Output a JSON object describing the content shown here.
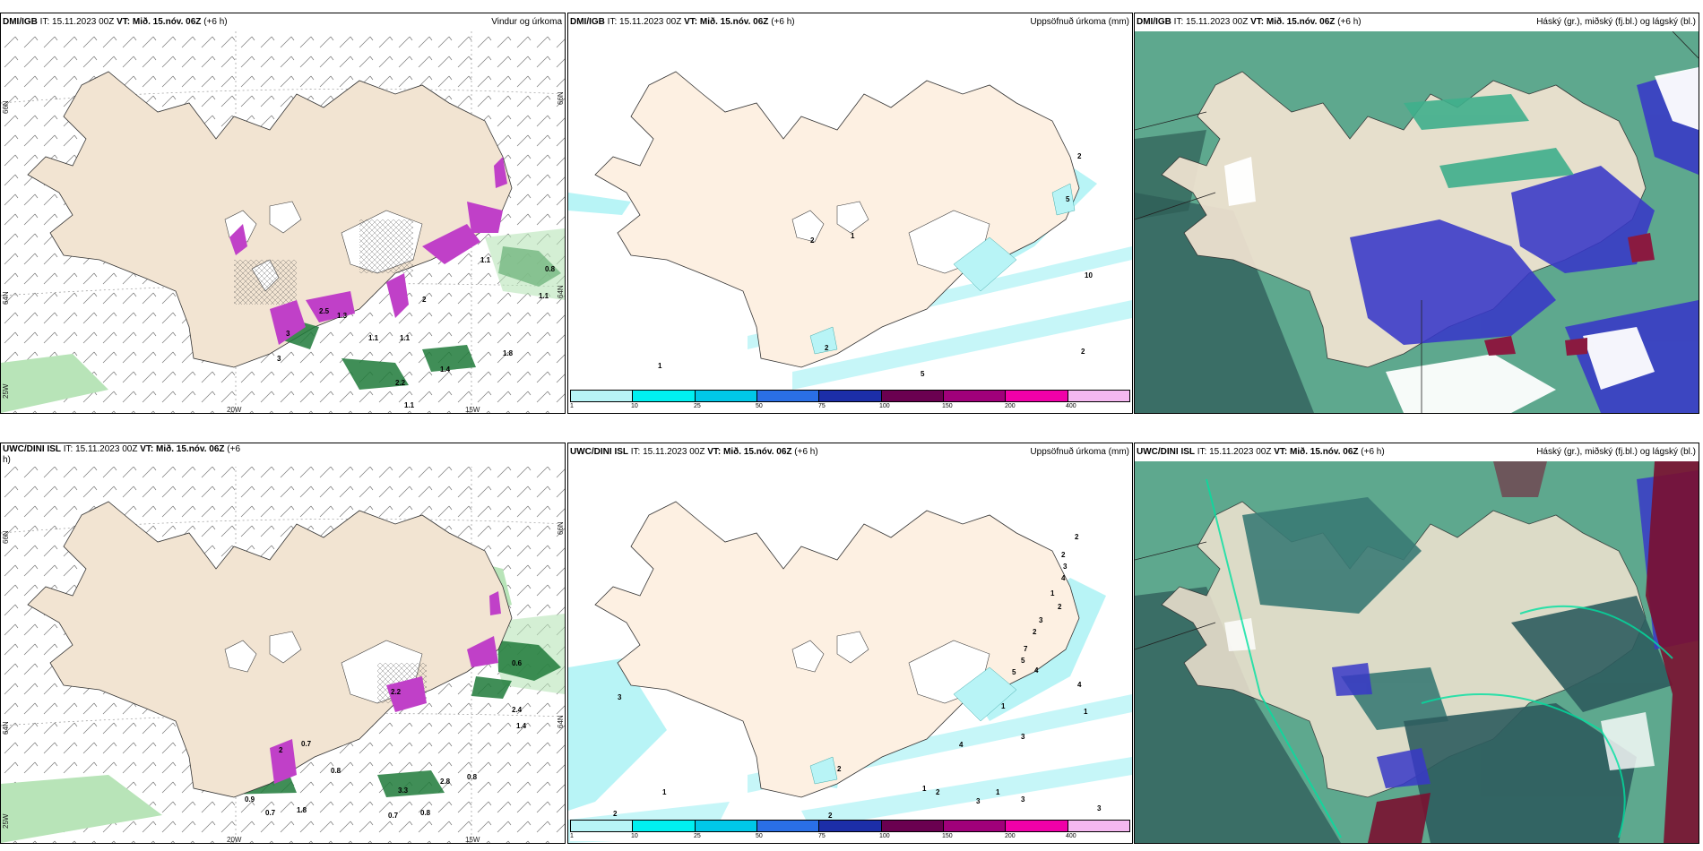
{
  "panels": [
    {
      "id": "dmi-wind",
      "model": "DMI/IGB",
      "it_label": "IT:",
      "it_value": "15.11.2023 00Z",
      "vt_label": "VT:",
      "vt_value": "Mið. 15.nóv. 06Z",
      "lead": "(+6 h)",
      "title": "Vindur og úrkoma",
      "lat_labels": [
        "66N",
        "64N",
        "66N",
        "64N",
        "25W"
      ],
      "lon_labels": [
        "20W",
        "15W"
      ],
      "values": [
        "0.8",
        "1.1",
        "1.3",
        "2.5",
        "1.1",
        "3",
        "3",
        "1.1",
        "2.2",
        "1.4",
        "1.8",
        "2",
        "1.1",
        "1.1"
      ]
    },
    {
      "id": "dmi-precip",
      "model": "DMI/IGB",
      "it_label": "IT:",
      "it_value": "15.11.2023 00Z",
      "vt_label": "VT:",
      "vt_value": "Mið. 15.nóv. 06Z",
      "lead": "(+6 h)",
      "title": "Uppsöfnuð úrkoma (mm)",
      "values": [
        "2",
        "1",
        "5",
        "2",
        "10",
        "2",
        "5",
        "1",
        "2"
      ]
    },
    {
      "id": "dmi-cloud",
      "model": "DMI/IGB",
      "it_label": "IT:",
      "it_value": "15.11.2023 00Z",
      "vt_label": "VT:",
      "vt_value": "Mið. 15.nóv. 06Z",
      "lead": "(+6 h)",
      "title": "Háský (gr.), miðský (fj.bl.) og lágský (bl.)"
    },
    {
      "id": "uwc-wind",
      "model": "UWC/DINI ISL",
      "it_label": "IT:",
      "it_value": "15.11.2023 00Z",
      "vt_label": "VT:",
      "vt_value": "Mið. 15.nóv. 06Z",
      "lead": "(+6",
      "lead_cont": "h)",
      "title": "",
      "lat_labels": [
        "66N",
        "64N",
        "66N",
        "64N",
        "25W"
      ],
      "lon_labels": [
        "20W",
        "15W"
      ],
      "values": [
        "0.6",
        "2.4",
        "1.4",
        "0.7",
        "0.8",
        "0.8",
        "3.3",
        "0.9",
        "0.7",
        "0.8",
        "0.7",
        "2.8",
        "2",
        "1.8",
        "2.2"
      ]
    },
    {
      "id": "uwc-precip",
      "model": "UWC/DINI ISL",
      "it_label": "IT:",
      "it_value": "15.11.2023 00Z",
      "vt_label": "VT:",
      "vt_value": "Mið. 15.nóv. 06Z",
      "lead": "(+6 h)",
      "title": "Uppsöfnuð úrkoma (mm)",
      "values": [
        "2",
        "2",
        "3",
        "4",
        "1",
        "2",
        "3",
        "2",
        "5",
        "4",
        "7",
        "5",
        "4",
        "1",
        "4",
        "1",
        "3",
        "1",
        "3",
        "3",
        "3",
        "1",
        "2",
        "2",
        "2",
        "3",
        "1",
        "2"
      ]
    },
    {
      "id": "uwc-cloud",
      "model": "UWC/DINI ISL",
      "it_label": "IT:",
      "it_value": "15.11.2023 00Z",
      "vt_label": "VT:",
      "vt_value": "Mið. 15.nóv. 06Z",
      "lead": "(+6 h)",
      "title": "Háský (gr.), miðský (fj.bl.) og lágský (bl.)"
    }
  ],
  "colorbar": {
    "ticks": [
      "1",
      "10",
      "25",
      "50",
      "75",
      "100",
      "150",
      "200",
      "400"
    ],
    "colors": [
      "#b8f4f6",
      "#00f0f0",
      "#00c8e8",
      "#2a6fe6",
      "#1c2ea8",
      "#6a0050",
      "#a0007a",
      "#f000a8",
      "#f4b8f0"
    ]
  },
  "colors": {
    "land": "#f2e4d2",
    "land_light": "#fdf0e2",
    "green_light": "#b8e4b8",
    "green_dark": "#1e7a3a",
    "magenta": "#c040c8",
    "cloud_high": "#3f9a80",
    "cloud_mid": "#3838c8",
    "cloud_low": "#7a1030"
  }
}
